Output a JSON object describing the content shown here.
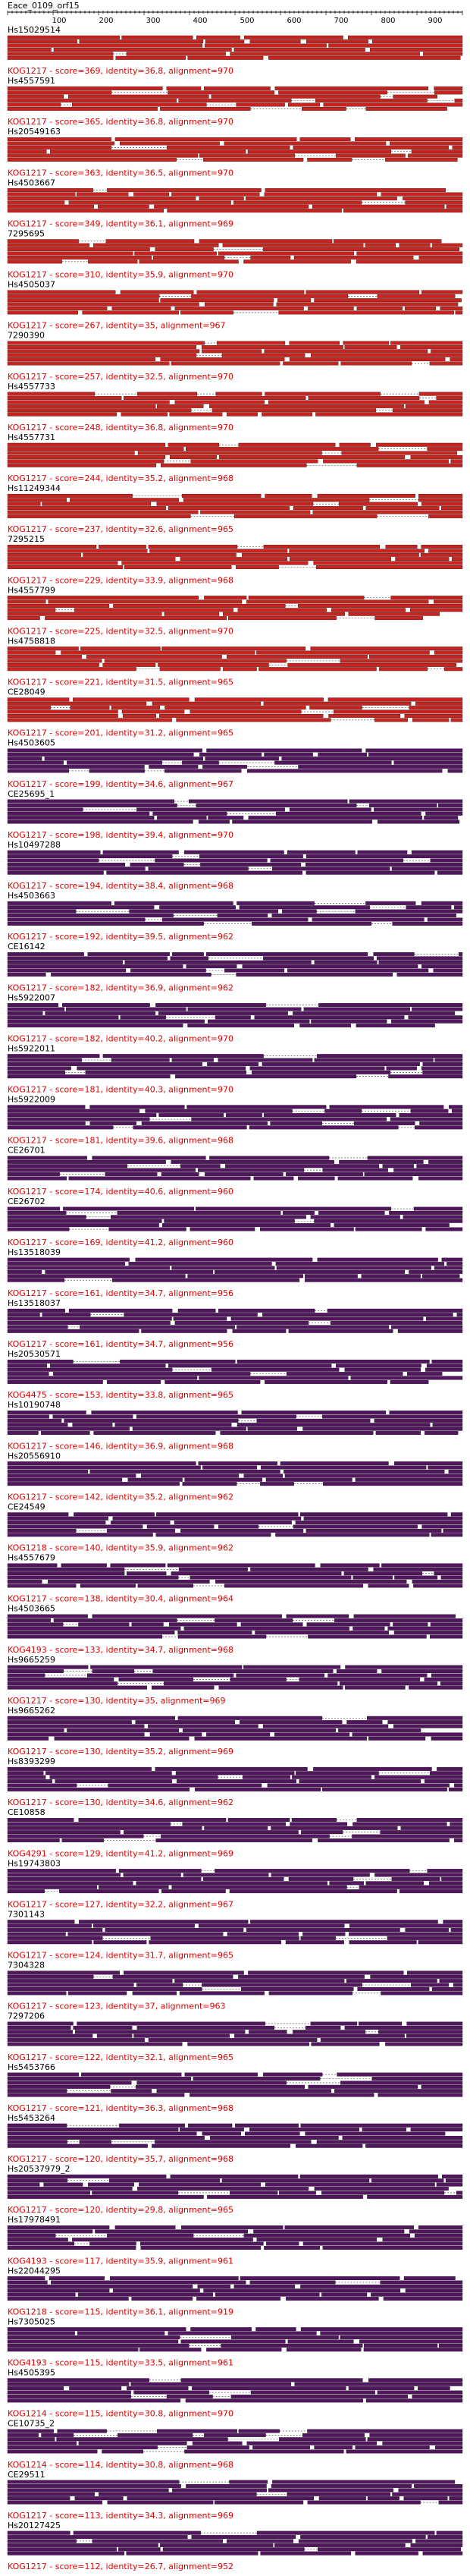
{
  "header": {
    "title": "Eace_0109_orf15",
    "ticks": [
      "100",
      "200",
      "300",
      "400",
      "500",
      "600",
      "700",
      "800",
      "900"
    ]
  },
  "colors": {
    "red": "#c8231e",
    "purple": "#52165f",
    "caption": "#e00000",
    "axis": "#000000",
    "dashed": "#333333"
  },
  "hits": [
    {
      "name": "Hs15029514",
      "caption": "KOG1217 - score=369, identity=36.8, alignment=970",
      "band": "red"
    },
    {
      "name": "Hs4557591",
      "caption": "KOG1217 - score=365, identity=36.8, alignment=970",
      "band": "red"
    },
    {
      "name": "Hs20549163",
      "caption": "KOG1217 - score=363, identity=36.5, alignment=970",
      "band": "red"
    },
    {
      "name": "Hs4503667",
      "caption": "KOG1217 - score=349, identity=36.1, alignment=969",
      "band": "red"
    },
    {
      "name": "7295695",
      "caption": "KOG1217 - score=310, identity=35.9, alignment=970",
      "band": "red"
    },
    {
      "name": "Hs4505037",
      "caption": "KOG1217 - score=267, identity=35, alignment=967",
      "band": "red"
    },
    {
      "name": "7290390",
      "caption": "KOG1217 - score=257, identity=32.5, alignment=970",
      "band": "red"
    },
    {
      "name": "Hs4557733",
      "caption": "KOG1217 - score=248, identity=36.8, alignment=970",
      "band": "red"
    },
    {
      "name": "Hs4557731",
      "caption": "KOG1217 - score=244, identity=35.2, alignment=968",
      "band": "red"
    },
    {
      "name": "Hs11249344",
      "caption": "KOG1217 - score=237, identity=32.6, alignment=965",
      "band": "red"
    },
    {
      "name": "7295215",
      "caption": "KOG1217 - score=229, identity=33.9, alignment=968",
      "band": "red"
    },
    {
      "name": "Hs4557799",
      "caption": "KOG1217 - score=225, identity=32.5, alignment=970",
      "band": "red"
    },
    {
      "name": "Hs4758818",
      "caption": "KOG1217 - score=221, identity=31.5, alignment=965",
      "band": "red"
    },
    {
      "name": "CE28049",
      "caption": "KOG1217 - score=201, identity=31.2, alignment=965",
      "band": "red"
    },
    {
      "name": "Hs4503605",
      "caption": "KOG1217 - score=199, identity=34.6, alignment=967",
      "band": "purple"
    },
    {
      "name": "CE25695_1",
      "caption": "KOG1217 - score=198, identity=39.4, alignment=970",
      "band": "purple"
    },
    {
      "name": "Hs10497288",
      "caption": "KOG1217 - score=194, identity=38.4, alignment=968",
      "band": "purple"
    },
    {
      "name": "Hs4503663",
      "caption": "KOG1217 - score=192, identity=39.5, alignment=962",
      "band": "purple"
    },
    {
      "name": "CE16142",
      "caption": "KOG1217 - score=182, identity=36.9, alignment=962",
      "band": "purple"
    },
    {
      "name": "Hs5922007",
      "caption": "KOG1217 - score=182, identity=40.2, alignment=970",
      "band": "purple"
    },
    {
      "name": "Hs5922011",
      "caption": "KOG1217 - score=181, identity=40.3, alignment=970",
      "band": "purple"
    },
    {
      "name": "Hs5922009",
      "caption": "KOG1217 - score=181, identity=39.6, alignment=968",
      "band": "purple"
    },
    {
      "name": "CE26701",
      "caption": "KOG1217 - score=174, identity=40.6, alignment=960",
      "band": "purple"
    },
    {
      "name": "CE26702",
      "caption": "KOG1217 - score=169, identity=41.2, alignment=960",
      "band": "purple"
    },
    {
      "name": "Hs13518039",
      "caption": "KOG1217 - score=161, identity=34.7, alignment=956",
      "band": "purple"
    },
    {
      "name": "Hs13518037",
      "caption": "KOG1217 - score=161, identity=34.7, alignment=956",
      "band": "purple"
    },
    {
      "name": "Hs20530571",
      "caption": "KOG4475 - score=153, identity=33.8, alignment=965",
      "band": "purple"
    },
    {
      "name": "Hs10190748",
      "caption": "KOG1217 - score=146, identity=36.9, alignment=968",
      "band": "purple"
    },
    {
      "name": "Hs20556910",
      "caption": "KOG1217 - score=142, identity=35.2, alignment=962",
      "band": "purple"
    },
    {
      "name": "CE24549",
      "caption": "KOG1218 - score=140, identity=35.9, alignment=962",
      "band": "purple"
    },
    {
      "name": "Hs4557679",
      "caption": "KOG1217 - score=138, identity=30.4, alignment=964",
      "band": "purple"
    },
    {
      "name": "Hs4503665",
      "caption": "KOG4193 - score=133, identity=34.7, alignment=968",
      "band": "purple"
    },
    {
      "name": "Hs9665259",
      "caption": "KOG1217 - score=130, identity=35, alignment=969",
      "band": "purple"
    },
    {
      "name": "Hs9665262",
      "caption": "KOG1217 - score=130, identity=35.2, alignment=969",
      "band": "purple"
    },
    {
      "name": "Hs8393299",
      "caption": "KOG1217 - score=130, identity=34.6, alignment=962",
      "band": "purple"
    },
    {
      "name": "CE10858",
      "caption": "KOG4291 - score=129, identity=41.2, alignment=969",
      "band": "purple"
    },
    {
      "name": "Hs19743803",
      "caption": "KOG1217 - score=127, identity=32.2, alignment=967",
      "band": "purple"
    },
    {
      "name": "7301143",
      "caption": "KOG1217 - score=124, identity=31.7, alignment=965",
      "band": "purple"
    },
    {
      "name": "7304328",
      "caption": "KOG1217 - score=123, identity=37, alignment=963",
      "band": "purple"
    },
    {
      "name": "7297206",
      "caption": "KOG1217 - score=122, identity=32.1, alignment=965",
      "band": "purple"
    },
    {
      "name": "Hs5453766",
      "caption": "KOG1217 - score=121, identity=36.3, alignment=968",
      "band": "purple"
    },
    {
      "name": "Hs5453264",
      "caption": "KOG1217 - score=120, identity=35.7, alignment=968",
      "band": "purple"
    },
    {
      "name": "Hs20537979_2",
      "caption": "KOG1217 - score=120, identity=29.8, alignment=965",
      "band": "purple"
    },
    {
      "name": "Hs17978491",
      "caption": "KOG4193 - score=117, identity=35.9, alignment=961",
      "band": "purple"
    },
    {
      "name": "Hs22044295",
      "caption": "KOG1218 - score=115, identity=36.1, alignment=919",
      "band": "purple"
    },
    {
      "name": "Hs7305025",
      "caption": "KOG4193 - score=115, identity=33.5, alignment=961",
      "band": "purple"
    },
    {
      "name": "Hs4505395",
      "caption": "KOG1214 - score=115, identity=30.8, alignment=970",
      "band": "purple"
    },
    {
      "name": "CE10735_2",
      "caption": "KOG1214 - score=114, identity=30.8, alignment=968",
      "band": "purple"
    },
    {
      "name": "CE29511",
      "caption": "KOG1217 - score=113, identity=34.3, alignment=969",
      "band": "purple"
    },
    {
      "name": "Hs20127425",
      "caption": "KOG1217 - score=112, identity=26.7, alignment=952",
      "band": "purple"
    }
  ]
}
